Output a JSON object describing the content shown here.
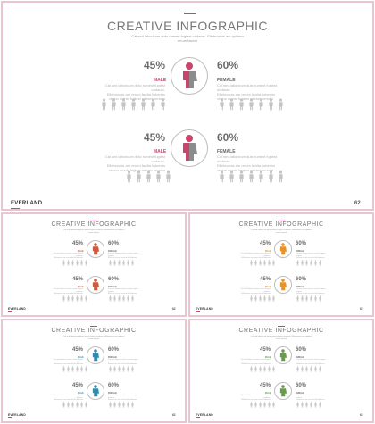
{
  "title": "CREATIVE INFOGRAPHIC",
  "subtitle_line1": "Cal sed laboricum duto rumest fugiest ondarac. Ellebrocnis am quidem",
  "subtitle_line2": "rerum facere",
  "brand": "EVERLAND",
  "page_number": "62",
  "block_top": {
    "left_pct": "45%",
    "right_pct": "60%",
    "left_label": "MALE",
    "right_label": "FEMALE",
    "body_lines": [
      "Cal sed laboricum duto rumest fugiest ondarac.",
      "Ellebrocnis am rerum facilla liobernis",
      "venno omnio fugiest odeser versino"
    ]
  },
  "block_bottom": {
    "left_pct": "45%",
    "right_pct": "60%",
    "left_label": "MALE",
    "right_label": "FEMALE",
    "body_lines": [
      "Cal sed laboricum duto rumest fugiest ondarac.",
      "Ellebrocnis am rerum facilla liobernis",
      "venno omnio fugiest odeser versino"
    ]
  },
  "colors": {
    "accent": "#c7466c",
    "male_hero": "#8c8c8c",
    "female_hero": "#c7466c",
    "thumb1": "#d05a3e",
    "thumb2": "#e8932a",
    "thumb3": "#2f8fb0",
    "thumb4": "#6a9a4e",
    "people_icons": "#c4c4c4"
  }
}
